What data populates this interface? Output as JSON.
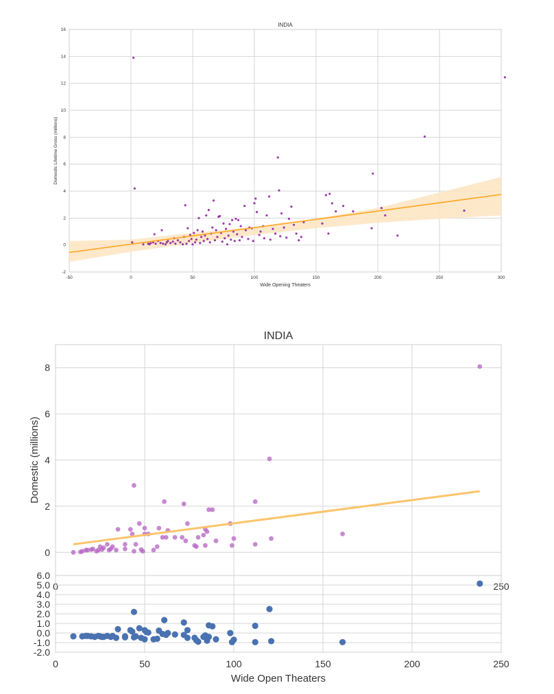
{
  "colors": {
    "purple": "#8b1a9b",
    "purple_light": "#b461c1",
    "orange": "#ffa726",
    "orange_light": "#fbc162",
    "band": "#fde5c1",
    "blue": "#4a72b0",
    "grid": "#d6d6d6"
  },
  "chart_data": [
    {
      "id": "top",
      "type": "scatter",
      "title": "INDIA",
      "xlabel": "Wide Opening Theaters",
      "ylabel": "Domestic Lifetime Gross (millions)",
      "xlim": [
        -50,
        300
      ],
      "ylim": [
        -2,
        16
      ],
      "xticks": [
        -50,
        0,
        50,
        100,
        150,
        200,
        250,
        300
      ],
      "yticks": [
        -2,
        0,
        2,
        4,
        6,
        8,
        10,
        12,
        14,
        16
      ],
      "grid": true,
      "regression": {
        "x": [
          -50,
          300
        ],
        "y": [
          -0.55,
          3.75
        ]
      },
      "band": {
        "x": [
          -50,
          0,
          50,
          100,
          150,
          200,
          250,
          300
        ],
        "lower": [
          -1.25,
          -0.5,
          0.15,
          0.75,
          1.25,
          1.65,
          1.95,
          2.2
        ],
        "upper": [
          0.3,
          0.4,
          0.9,
          1.35,
          1.95,
          2.75,
          3.9,
          5.05
        ]
      },
      "points": [
        [
          1,
          0.2
        ],
        [
          2,
          13.9
        ],
        [
          3,
          4.2
        ],
        [
          10,
          0.05
        ],
        [
          14,
          0.1
        ],
        [
          15,
          0.05
        ],
        [
          16,
          0.15
        ],
        [
          18,
          0.2
        ],
        [
          19,
          0.8
        ],
        [
          20,
          0.1
        ],
        [
          22,
          0.3
        ],
        [
          24,
          0.15
        ],
        [
          25,
          1.1
        ],
        [
          26,
          0.1
        ],
        [
          28,
          0.05
        ],
        [
          29,
          0.2
        ],
        [
          30,
          0.3
        ],
        [
          32,
          0.15
        ],
        [
          34,
          0.25
        ],
        [
          35,
          0.5
        ],
        [
          36,
          0.1
        ],
        [
          38,
          0.35
        ],
        [
          40,
          0.2
        ],
        [
          42,
          0.05
        ],
        [
          43,
          0.6
        ],
        [
          44,
          2.95
        ],
        [
          45,
          0.1
        ],
        [
          46,
          1.25
        ],
        [
          47,
          0.3
        ],
        [
          48,
          0.75
        ],
        [
          49,
          0.45
        ],
        [
          50,
          0.05
        ],
        [
          51,
          0.9
        ],
        [
          52,
          0.2
        ],
        [
          53,
          0.4
        ],
        [
          54,
          1.1
        ],
        [
          55,
          2.0
        ],
        [
          56,
          0.15
        ],
        [
          57,
          0.6
        ],
        [
          58,
          1.0
        ],
        [
          59,
          0.3
        ],
        [
          60,
          0.7
        ],
        [
          61,
          2.2
        ],
        [
          62,
          0.45
        ],
        [
          63,
          2.6
        ],
        [
          64,
          0.2
        ],
        [
          65,
          0.85
        ],
        [
          66,
          1.3
        ],
        [
          67,
          3.3
        ],
        [
          68,
          0.35
        ],
        [
          69,
          1.1
        ],
        [
          70,
          0.6
        ],
        [
          71,
          2.1
        ],
        [
          72,
          2.15
        ],
        [
          73,
          0.9
        ],
        [
          74,
          0.25
        ],
        [
          75,
          1.6
        ],
        [
          76,
          0.5
        ],
        [
          77,
          1.2
        ],
        [
          78,
          0.05
        ],
        [
          79,
          0.7
        ],
        [
          80,
          1.55
        ],
        [
          81,
          0.4
        ],
        [
          82,
          1.85
        ],
        [
          83,
          1.0
        ],
        [
          84,
          0.3
        ],
        [
          85,
          1.95
        ],
        [
          86,
          0.8
        ],
        [
          87,
          1.85
        ],
        [
          88,
          0.35
        ],
        [
          89,
          1.4
        ],
        [
          90,
          0.6
        ],
        [
          92,
          2.9
        ],
        [
          93,
          1.1
        ],
        [
          95,
          0.45
        ],
        [
          96,
          1.3
        ],
        [
          98,
          1.25
        ],
        [
          99,
          0.3
        ],
        [
          100,
          3.1
        ],
        [
          101,
          3.45
        ],
        [
          102,
          2.45
        ],
        [
          104,
          0.75
        ],
        [
          105,
          1.0
        ],
        [
          107,
          1.4
        ],
        [
          108,
          0.5
        ],
        [
          110,
          2.2
        ],
        [
          112,
          3.6
        ],
        [
          113,
          0.4
        ],
        [
          115,
          1.2
        ],
        [
          117,
          0.85
        ],
        [
          119,
          6.5
        ],
        [
          120,
          4.05
        ],
        [
          121,
          0.65
        ],
        [
          122,
          2.35
        ],
        [
          124,
          1.3
        ],
        [
          126,
          0.55
        ],
        [
          128,
          1.95
        ],
        [
          130,
          2.85
        ],
        [
          132,
          1.5
        ],
        [
          134,
          0.85
        ],
        [
          136,
          0.35
        ],
        [
          138,
          0.6
        ],
        [
          140,
          1.7
        ],
        [
          155,
          1.6
        ],
        [
          158,
          3.7
        ],
        [
          160,
          0.85
        ],
        [
          161,
          3.8
        ],
        [
          163,
          3.1
        ],
        [
          166,
          2.5
        ],
        [
          172,
          2.9
        ],
        [
          180,
          2.5
        ],
        [
          195,
          1.25
        ],
        [
          196,
          5.3
        ],
        [
          203,
          2.75
        ],
        [
          206,
          2.2
        ],
        [
          216,
          0.7
        ],
        [
          238,
          8.05
        ],
        [
          270,
          2.55
        ],
        [
          303,
          12.45
        ]
      ]
    },
    {
      "id": "middle",
      "type": "scatter",
      "title": "INDIA",
      "xlabel": "",
      "ylabel": "Domestic (millions)",
      "xlim": [
        0,
        250
      ],
      "ylim": [
        -1,
        9
      ],
      "xticks": [
        0,
        50,
        100,
        150,
        200,
        250
      ],
      "yticks": [
        0,
        2,
        4,
        6,
        8
      ],
      "visible_x_tick_labels": [
        "0",
        "250"
      ],
      "grid": true,
      "regression": {
        "x": [
          10,
          238
        ],
        "y": [
          0.35,
          2.65
        ]
      },
      "points": [
        [
          10,
          0.0
        ],
        [
          14,
          0.02
        ],
        [
          15,
          0.05
        ],
        [
          17,
          0.1
        ],
        [
          18,
          0.1
        ],
        [
          20,
          0.12
        ],
        [
          21,
          0.15
        ],
        [
          23,
          0.05
        ],
        [
          24,
          0.1
        ],
        [
          25,
          0.25
        ],
        [
          26,
          0.12
        ],
        [
          27,
          0.2
        ],
        [
          29,
          0.35
        ],
        [
          30,
          0.1
        ],
        [
          31,
          0.15
        ],
        [
          32,
          0.25
        ],
        [
          34,
          0.1
        ],
        [
          35,
          1.0
        ],
        [
          39,
          0.35
        ],
        [
          39,
          0.15
        ],
        [
          42,
          1.0
        ],
        [
          43,
          0.8
        ],
        [
          44,
          2.9
        ],
        [
          44,
          0.05
        ],
        [
          45,
          0.35
        ],
        [
          47,
          1.25
        ],
        [
          48,
          0.12
        ],
        [
          49,
          0.05
        ],
        [
          50,
          1.05
        ],
        [
          50,
          0.8
        ],
        [
          52,
          0.8
        ],
        [
          55,
          0.1
        ],
        [
          57,
          0.25
        ],
        [
          58,
          1.05
        ],
        [
          60,
          0.65
        ],
        [
          61,
          2.2
        ],
        [
          62,
          0.65
        ],
        [
          63,
          0.95
        ],
        [
          67,
          0.65
        ],
        [
          71,
          0.65
        ],
        [
          72,
          2.1
        ],
        [
          73,
          0.5
        ],
        [
          74,
          1.25
        ],
        [
          78,
          0.3
        ],
        [
          79,
          0.25
        ],
        [
          80,
          0.65
        ],
        [
          83,
          0.75
        ],
        [
          84,
          1.0
        ],
        [
          84,
          0.3
        ],
        [
          85,
          0.9
        ],
        [
          86,
          1.85
        ],
        [
          88,
          1.85
        ],
        [
          90,
          0.5
        ],
        [
          98,
          1.25
        ],
        [
          99,
          0.3
        ],
        [
          100,
          0.6
        ],
        [
          112,
          2.2
        ],
        [
          112,
          0.35
        ],
        [
          120,
          4.05
        ],
        [
          121,
          0.6
        ],
        [
          161,
          0.8
        ],
        [
          238,
          8.05
        ]
      ]
    },
    {
      "id": "bottom",
      "type": "scatter",
      "title": "",
      "xlabel": "Wide Open Theaters",
      "ylabel": "",
      "xlim": [
        0,
        250
      ],
      "ylim": [
        -2,
        6
      ],
      "xticks": [
        0,
        50,
        100,
        150,
        200,
        250
      ],
      "yticks": [
        -2,
        -1,
        0,
        1,
        2,
        3,
        4,
        5,
        6
      ],
      "ytick_labels": [
        "-2.0",
        "-1.0",
        "0.0",
        "1.0",
        "2.0",
        "3.0",
        "4.0",
        "5.0",
        "6.0"
      ],
      "grid": true,
      "points": [
        [
          10,
          -0.35
        ],
        [
          15,
          -0.35
        ],
        [
          17,
          -0.3
        ],
        [
          18,
          -0.3
        ],
        [
          20,
          -0.35
        ],
        [
          22,
          -0.4
        ],
        [
          24,
          -0.3
        ],
        [
          25,
          -0.35
        ],
        [
          26,
          -0.4
        ],
        [
          27,
          -0.4
        ],
        [
          29,
          -0.3
        ],
        [
          31,
          -0.4
        ],
        [
          32,
          -0.3
        ],
        [
          34,
          -0.5
        ],
        [
          35,
          0.4
        ],
        [
          39,
          -0.45
        ],
        [
          39,
          -0.35
        ],
        [
          42,
          0.3
        ],
        [
          43,
          0.15
        ],
        [
          44,
          2.2
        ],
        [
          44,
          -0.45
        ],
        [
          45,
          -0.35
        ],
        [
          47,
          0.5
        ],
        [
          48,
          -0.5
        ],
        [
          50,
          -0.65
        ],
        [
          50,
          0.3
        ],
        [
          51,
          0.1
        ],
        [
          52,
          0.05
        ],
        [
          55,
          -0.65
        ],
        [
          57,
          -0.6
        ],
        [
          58,
          0.25
        ],
        [
          60,
          -0.1
        ],
        [
          61,
          1.35
        ],
        [
          62,
          -0.2
        ],
        [
          63,
          0.0
        ],
        [
          67,
          -0.15
        ],
        [
          72,
          -0.2
        ],
        [
          72,
          1.1
        ],
        [
          74,
          -0.5
        ],
        [
          74,
          0.3
        ],
        [
          78,
          -0.5
        ],
        [
          79,
          -0.75
        ],
        [
          80,
          -0.9
        ],
        [
          83,
          -0.4
        ],
        [
          84,
          -0.25
        ],
        [
          85,
          -0.8
        ],
        [
          86,
          -0.4
        ],
        [
          86,
          0.8
        ],
        [
          88,
          0.7
        ],
        [
          90,
          -0.65
        ],
        [
          98,
          0.0
        ],
        [
          99,
          -0.95
        ],
        [
          100,
          -0.7
        ],
        [
          112,
          0.75
        ],
        [
          112,
          -0.95
        ],
        [
          120,
          2.5
        ],
        [
          121,
          -0.85
        ],
        [
          161,
          -0.95
        ],
        [
          238,
          5.15
        ]
      ]
    }
  ]
}
